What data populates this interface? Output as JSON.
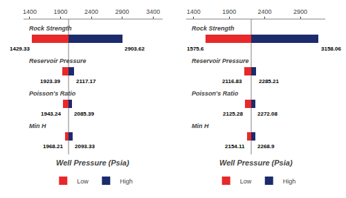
{
  "chart_data": [
    {
      "type": "bar",
      "orientation": "horizontal",
      "title": "Well Pressure (Psia)",
      "categories": [
        "Rock Strength",
        "Reservoir Pressure",
        "Poisson's Ratio",
        "Min H"
      ],
      "series": [
        {
          "name": "Low",
          "color": "#e8292a",
          "values": [
            1429.33,
            1923.39,
            1943.24,
            1968.21
          ]
        },
        {
          "name": "High",
          "color": "#1c2b6b",
          "values": [
            2903.62,
            2117.17,
            2085.39,
            2093.33
          ]
        }
      ],
      "baseline": 2030,
      "xlim": [
        1300,
        3550
      ],
      "xticks": [
        1400,
        1900,
        2400,
        2900,
        3400
      ],
      "grid": false,
      "data_labels": true,
      "legend": "bottom",
      "tick_labels": "x"
    },
    {
      "type": "bar",
      "orientation": "horizontal",
      "title": "Well Pressure (Psia)",
      "categories": [
        "Rock Strength",
        "Reservoir Pressure",
        "Poisson's Ratio",
        "Min H"
      ],
      "series": [
        {
          "name": "Low",
          "color": "#e8292a",
          "values": [
            1575.6,
            2116.83,
            2125.28,
            2154.11
          ]
        },
        {
          "name": "High",
          "color": "#1c2b6b",
          "values": [
            3158.06,
            2285.21,
            2272.08,
            2268.9
          ]
        }
      ],
      "baseline": 2210,
      "xlim": [
        1300,
        3250
      ],
      "xticks": [
        1400,
        1900,
        2400,
        2900
      ],
      "grid": false,
      "data_labels": true,
      "legend": "bottom",
      "tick_labels": "x"
    }
  ]
}
